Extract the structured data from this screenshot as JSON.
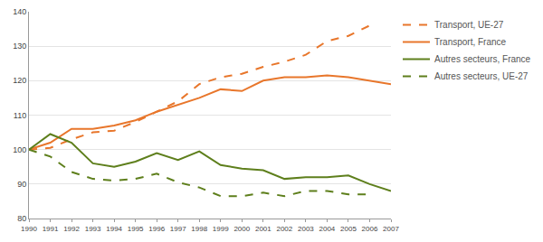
{
  "chart_data": {
    "type": "line",
    "x": [
      1990,
      1991,
      1992,
      1993,
      1994,
      1995,
      1996,
      1997,
      1998,
      1999,
      2000,
      2001,
      2002,
      2003,
      2004,
      2005,
      2006,
      2007
    ],
    "series": [
      {
        "name": "Transport, UE-27",
        "color": "#e8762b",
        "line_style": "dashed",
        "values": [
          100,
          100.5,
          103,
          105,
          105.5,
          108,
          111,
          114,
          119,
          121,
          122,
          124,
          125.5,
          127.5,
          131.5,
          133,
          136,
          null
        ]
      },
      {
        "name": "Transport, France",
        "color": "#e8762b",
        "line_style": "solid",
        "values": [
          100,
          102,
          106,
          106,
          107,
          108.5,
          111,
          113,
          115,
          117.5,
          117,
          120,
          121,
          121,
          121.5,
          121,
          120,
          119
        ]
      },
      {
        "name": "Autres secteurs, France",
        "color": "#5e7f1c",
        "line_style": "solid",
        "values": [
          100,
          104.5,
          102,
          96,
          95,
          96.5,
          99,
          97,
          99.5,
          95.5,
          94.5,
          94,
          91.5,
          92,
          92,
          92.5,
          90,
          88
        ]
      },
      {
        "name": "Autres secteurs, UE-27",
        "color": "#5e7f1c",
        "line_style": "dashed",
        "values": [
          100,
          98,
          93.5,
          91.5,
          91,
          91.5,
          93,
          90.5,
          89,
          86.5,
          86.5,
          87.5,
          86.5,
          88,
          88,
          87,
          87,
          null
        ]
      }
    ],
    "xlim": [
      1990,
      2007
    ],
    "xticks": [
      1990,
      1991,
      1992,
      1993,
      1994,
      1995,
      1996,
      1997,
      1998,
      1999,
      2000,
      2001,
      2002,
      2003,
      2004,
      2005,
      2006,
      2007
    ],
    "ylim": [
      80,
      140
    ],
    "yticks": [
      80,
      90,
      100,
      110,
      120,
      130,
      140
    ],
    "grid": true,
    "legend": "right"
  }
}
